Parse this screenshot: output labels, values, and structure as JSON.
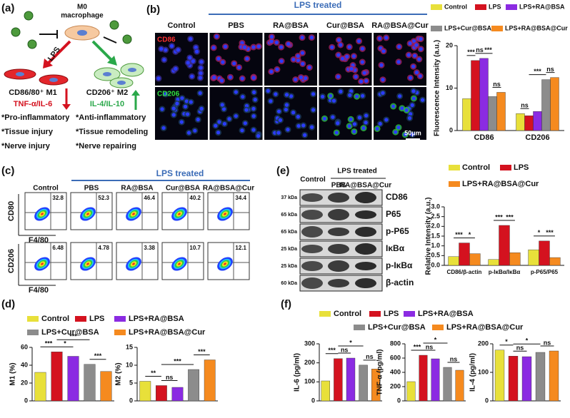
{
  "panel_labels": [
    "(a)",
    "(b)",
    "(c)",
    "(d)",
    "(e)",
    "(f)"
  ],
  "panel_a": {
    "cell_title": [
      "M0",
      "macrophage"
    ],
    "stimulus": "LPS",
    "m1": {
      "name": "CD86/80⁺ M1",
      "cytokines": "TNF-α/IL-6",
      "effects": [
        "*Pro-inflammatory",
        "*Tissue injury",
        "*Nerve injury"
      ]
    },
    "m2": {
      "name": "CD206⁺ M2",
      "cytokines": "IL-4/IL-10",
      "effects": [
        "*Anti-inflammatory",
        "*Tissue remodeling",
        "*Nerve repairing"
      ]
    }
  },
  "panel_b": {
    "treatment": "LPS treated",
    "columns": [
      "Control",
      "PBS",
      "RA@BSA",
      "Cur@BSA",
      "RA@BSA@Cur"
    ],
    "rows": [
      "CD86",
      "CD206"
    ],
    "scale_bar": "50μm"
  },
  "panel_c": {
    "treatment": "LPS treated",
    "columns": [
      "Control",
      "PBS",
      "RA@BSA",
      "Cur@BSA",
      "RA@BSA@Cur"
    ],
    "rows": [
      {
        "y_label": "CD80",
        "x_label": "F4/80",
        "percentages": [
          32.8,
          52.3,
          46.4,
          40.2,
          34.4
        ]
      },
      {
        "y_label": "CD206",
        "x_label": "F4/80",
        "percentages": [
          6.48,
          4.78,
          3.38,
          10.7,
          12.1
        ]
      }
    ]
  },
  "panel_d": {
    "legend": [
      {
        "name": "Control",
        "color": "#e8e03a"
      },
      {
        "name": "LPS",
        "color": "#d4121f"
      },
      {
        "name": "LPS+RA@BSA",
        "color": "#8b2be2"
      },
      {
        "name": "LPS+Cur@BSA",
        "color": "#8c8c8c"
      },
      {
        "name": "LPS+RA@BSA@Cur",
        "color": "#f58a1f"
      }
    ]
  },
  "panel_e": {
    "control": "Control",
    "treatment": "LPS treated",
    "lanes": [
      "PBS",
      "RA@BSA@Cur"
    ],
    "bands": [
      {
        "kda": "37 kDa",
        "protein": "CD86"
      },
      {
        "kda": "65 kDa",
        "protein": "P65"
      },
      {
        "kda": "65 kDa",
        "protein": "p-P65"
      },
      {
        "kda": "25 kDa",
        "protein": "IκBα"
      },
      {
        "kda": "25 kDa",
        "protein": "p-IκBα"
      },
      {
        "kda": "60 kDa",
        "protein": "β-actin"
      }
    ]
  },
  "panel_f": {
    "legend": [
      {
        "name": "Control",
        "color": "#e8e03a"
      },
      {
        "name": "LPS",
        "color": "#d4121f"
      },
      {
        "name": "LPS+RA@BSA",
        "color": "#8b2be2"
      },
      {
        "name": "LPS+Cur@BSA",
        "color": "#8c8c8c"
      },
      {
        "name": "LPS+RA@BSA@Cur",
        "color": "#f58a1f"
      }
    ]
  },
  "chart_data": [
    {
      "type": "bar",
      "y_label": "Fluorescence Intensity (a.u.)",
      "categories": [
        "CD86",
        "CD206"
      ],
      "series": [
        {
          "name": "Control",
          "color": "#e8e03a",
          "values": [
            7.5,
            4
          ]
        },
        {
          "name": "LPS",
          "color": "#d4121f",
          "values": [
            16.5,
            3.5
          ]
        },
        {
          "name": "LPS+RA@BSA",
          "color": "#8b2be2",
          "values": [
            17,
            4.5
          ]
        },
        {
          "name": "LPS+Cur@BSA",
          "color": "#8c8c8c",
          "values": [
            8,
            12
          ]
        },
        {
          "name": "LPS+RA@BSA@Cur",
          "color": "#f58a1f",
          "values": [
            9,
            12.5
          ]
        }
      ],
      "ylim": [
        0,
        20
      ],
      "yticks": [
        0,
        10,
        20
      ],
      "annotations": [
        {
          "label": "***",
          "group": 0,
          "between": [
            0,
            1
          ]
        },
        {
          "label": "ns",
          "group": 0,
          "between": [
            1,
            2
          ]
        },
        {
          "label": "***",
          "group": 0,
          "between": [
            2,
            3
          ]
        },
        {
          "label": "ns",
          "group": 0,
          "between": [
            3,
            4
          ]
        },
        {
          "label": "ns",
          "group": 1,
          "between": [
            0,
            1
          ]
        },
        {
          "label": "***",
          "group": 1,
          "between": [
            1,
            3
          ]
        },
        {
          "label": "ns",
          "group": 1,
          "between": [
            3,
            4
          ]
        }
      ]
    },
    {
      "type": "bar",
      "y_label": "Relative Intensity (a.u.)",
      "categories": [
        "CD86/β-actin",
        "p-IκBα/IκBα",
        "p-P65/P65"
      ],
      "series": [
        {
          "name": "Control",
          "color": "#e8e03a",
          "values": [
            0.45,
            0.3,
            0.8
          ]
        },
        {
          "name": "LPS",
          "color": "#d4121f",
          "values": [
            1.15,
            2.05,
            1.25
          ]
        },
        {
          "name": "LPS+RA@BSA@Cur",
          "color": "#f58a1f",
          "values": [
            0.6,
            0.65,
            0.4
          ]
        }
      ],
      "ylim": [
        0,
        3
      ],
      "yticks": [
        {
          "value": 0,
          "label": "0.0"
        },
        {
          "value": 0.5,
          "label": "0.5"
        },
        {
          "value": 1,
          "label": "1.0"
        },
        {
          "value": 1.5,
          "label": "1.5"
        },
        {
          "value": 2,
          "label": "2.0"
        },
        {
          "value": 2.5,
          "label": "2.5"
        },
        {
          "value": 3,
          "label": "3.0"
        }
      ],
      "annotations": [
        {
          "label": "***",
          "group": 0,
          "between": [
            0,
            1
          ]
        },
        {
          "label": "*",
          "group": 0,
          "between": [
            1,
            2
          ]
        },
        {
          "label": "***",
          "group": 1,
          "between": [
            0,
            1
          ]
        },
        {
          "label": "***",
          "group": 1,
          "between": [
            1,
            2
          ]
        },
        {
          "label": "*",
          "group": 2,
          "between": [
            0,
            1
          ]
        },
        {
          "label": "***",
          "group": 2,
          "between": [
            1,
            2
          ]
        }
      ]
    },
    {
      "type": "bar",
      "y_label": "M1 (%)",
      "categories": [
        null,
        null,
        null,
        null,
        null
      ],
      "values": [
        32,
        55,
        50,
        41,
        33
      ],
      "colors": [
        "#e8e03a",
        "#d4121f",
        "#8b2be2",
        "#8c8c8c",
        "#f58a1f"
      ],
      "ylim": [
        0,
        60
      ],
      "yticks": [
        0,
        20,
        40,
        60
      ],
      "annotations": [
        {
          "label": "***",
          "between": [
            0,
            1
          ]
        },
        {
          "label": "*",
          "between": [
            1,
            2
          ]
        },
        {
          "label": "***",
          "between": [
            1,
            3
          ]
        },
        {
          "label": "***",
          "between": [
            3,
            4
          ]
        }
      ]
    },
    {
      "type": "bar",
      "y_label": "M2 (%)",
      "categories": [
        null,
        null,
        null,
        null,
        null
      ],
      "values": [
        5.5,
        4.3,
        3.8,
        8.8,
        11.5
      ],
      "colors": [
        "#e8e03a",
        "#d4121f",
        "#8b2be2",
        "#8c8c8c",
        "#f58a1f"
      ],
      "ylim": [
        0,
        15
      ],
      "yticks": [
        0,
        5,
        10,
        15
      ],
      "annotations": [
        {
          "label": "**",
          "between": [
            0,
            1
          ]
        },
        {
          "label": "ns",
          "between": [
            1,
            2
          ]
        },
        {
          "label": "***",
          "between": [
            1,
            3
          ]
        },
        {
          "label": "***",
          "between": [
            3,
            4
          ]
        }
      ]
    },
    {
      "type": "bar",
      "y_label": "IL-6 (pg/ml)",
      "categories": [
        null,
        null,
        null,
        null,
        null
      ],
      "values": [
        105,
        222,
        225,
        188,
        168
      ],
      "colors": [
        "#e8e03a",
        "#d4121f",
        "#8b2be2",
        "#8c8c8c",
        "#f58a1f"
      ],
      "ylim": [
        0,
        300
      ],
      "yticks": [
        0,
        100,
        200,
        300
      ],
      "annotations": [
        {
          "label": "***",
          "between": [
            0,
            1
          ]
        },
        {
          "label": "ns",
          "between": [
            1,
            2
          ]
        },
        {
          "label": "*",
          "between": [
            1,
            3
          ]
        },
        {
          "label": "ns",
          "between": [
            3,
            4
          ]
        }
      ]
    },
    {
      "type": "bar",
      "y_label": "TNF-α (pg/ml)",
      "categories": [
        null,
        null,
        null,
        null,
        null
      ],
      "values": [
        270,
        640,
        590,
        470,
        430
      ],
      "colors": [
        "#e8e03a",
        "#d4121f",
        "#8b2be2",
        "#8c8c8c",
        "#f58a1f"
      ],
      "ylim": [
        0,
        800
      ],
      "yticks": [
        0,
        200,
        400,
        600,
        800
      ],
      "annotations": [
        {
          "label": "***",
          "between": [
            0,
            1
          ]
        },
        {
          "label": "ns",
          "between": [
            1,
            2
          ]
        },
        {
          "label": "*",
          "between": [
            1,
            3
          ]
        },
        {
          "label": "ns",
          "between": [
            3,
            4
          ]
        }
      ]
    },
    {
      "type": "bar",
      "y_label": "IL-4 (pg/ml)",
      "categories": [
        null,
        null,
        null,
        null,
        null
      ],
      "values": [
        178,
        157,
        155,
        170,
        175
      ],
      "colors": [
        "#e8e03a",
        "#d4121f",
        "#8b2be2",
        "#8c8c8c",
        "#f58a1f"
      ],
      "ylim": [
        0,
        200
      ],
      "yticks": [
        0,
        100,
        200
      ],
      "annotations": [
        {
          "label": "*",
          "between": [
            0,
            1
          ]
        },
        {
          "label": "ns",
          "between": [
            1,
            2
          ]
        },
        {
          "label": "*",
          "between": [
            1,
            3
          ]
        },
        {
          "label": "ns",
          "between": [
            3,
            4
          ]
        }
      ]
    }
  ]
}
